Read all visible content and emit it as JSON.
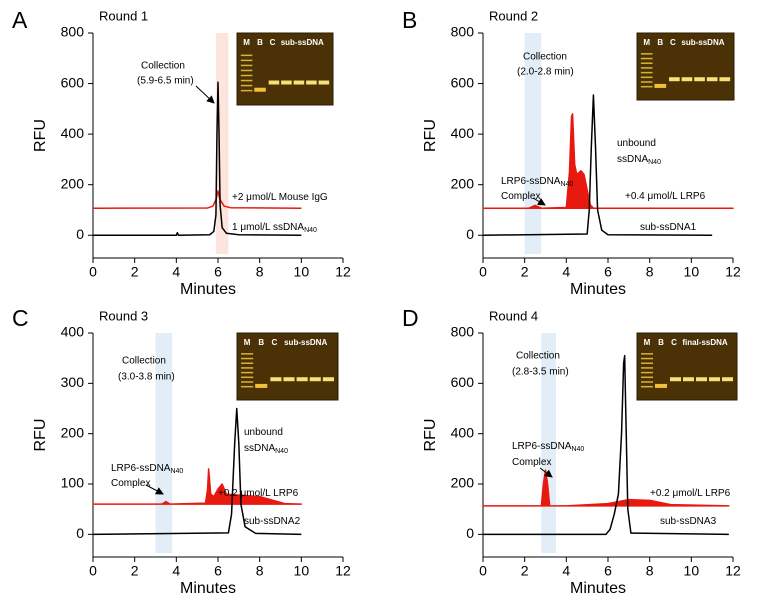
{
  "chart_data": [
    {
      "type": "line",
      "panel": "A",
      "title": "Round 1",
      "xlabel": "Minutes",
      "ylabel": "RFU",
      "xlim": [
        0,
        12
      ],
      "xticks": [
        0,
        2,
        4,
        6,
        8,
        10,
        12
      ],
      "ylim": [
        -90,
        800
      ],
      "yticks": [
        0,
        200,
        400,
        600,
        800
      ],
      "collection": {
        "lines": [
          "Collection",
          "(5.9-6.5 min)"
        ],
        "range": [
          5.9,
          6.5
        ],
        "color": "#fde4dc"
      },
      "gel_labels": [
        "M",
        "B",
        "C",
        "sub-ssDNA"
      ],
      "notes": [],
      "series": [
        {
          "name": "+2 μmol/L Mouse IgG",
          "color": "#e8190e",
          "fill": false,
          "x": [
            0,
            5.5,
            5.75,
            5.9,
            6.0,
            6.1,
            6.3,
            6.6,
            10
          ],
          "values": [
            107,
            108,
            115,
            140,
            175,
            140,
            115,
            109,
            107
          ]
        },
        {
          "name": "1 μmol/L ssDNA",
          "name_sub": "N40",
          "color": "#000000",
          "fill": false,
          "x": [
            0,
            4,
            4.05,
            4.1,
            5.6,
            5.8,
            5.9,
            5.95,
            6.0,
            6.05,
            6.1,
            6.2,
            6.4,
            7,
            10
          ],
          "values": [
            0,
            0,
            10,
            0,
            2,
            15,
            80,
            400,
            605,
            400,
            120,
            30,
            8,
            2,
            0
          ]
        }
      ]
    },
    {
      "type": "line",
      "panel": "B",
      "title": "Round 2",
      "xlabel": "Minutes",
      "ylabel": "RFU",
      "xlim": [
        0,
        12
      ],
      "xticks": [
        0,
        2,
        4,
        6,
        8,
        10,
        12
      ],
      "ylim": [
        -90,
        800
      ],
      "yticks": [
        0,
        200,
        400,
        600,
        800
      ],
      "collection": {
        "lines": [
          "Collection",
          "(2.0-2.8 min)"
        ],
        "range": [
          2.0,
          2.8
        ],
        "color": "#e3edf7"
      },
      "gel_labels": [
        "M",
        "B",
        "C",
        "sub-ssDNA"
      ],
      "notes": [
        [
          "unbound"
        ],
        [
          "ssDNA",
          "N40"
        ],
        [
          "LRP6-ssDNA",
          "N40"
        ],
        [
          "Complex"
        ]
      ],
      "series": [
        {
          "name": "+0.4 μmol/L LRP6",
          "color": "#e8190e",
          "fill": true,
          "x": [
            0,
            2.2,
            2.5,
            2.8,
            4.0,
            4.15,
            4.25,
            4.3,
            4.4,
            4.5,
            4.7,
            4.85,
            5.0,
            5.15,
            5.3,
            12
          ],
          "values": [
            107,
            107,
            118,
            107,
            110,
            250,
            470,
            480,
            280,
            240,
            255,
            240,
            180,
            120,
            107,
            107
          ]
        },
        {
          "name": "sub-ssDNA1",
          "color": "#000000",
          "fill": false,
          "x": [
            0,
            5.0,
            5.1,
            5.2,
            5.3,
            5.4,
            5.5,
            5.7,
            6.0,
            11
          ],
          "values": [
            0,
            5,
            100,
            350,
            555,
            350,
            100,
            20,
            2,
            0
          ]
        }
      ]
    },
    {
      "type": "line",
      "panel": "C",
      "title": "Round 3",
      "xlabel": "Minutes",
      "ylabel": "RFU",
      "xlim": [
        0,
        12
      ],
      "xticks": [
        0,
        2,
        4,
        6,
        8,
        10,
        12
      ],
      "ylim": [
        -45,
        400
      ],
      "yticks": [
        0,
        100,
        200,
        300,
        400
      ],
      "collection": {
        "lines": [
          "Collection",
          "(3.0-3.8 min)"
        ],
        "range": [
          3.0,
          3.8
        ],
        "color": "#e3edf7"
      },
      "gel_labels": [
        "M",
        "B",
        "C",
        "sub-ssDNA"
      ],
      "notes": [
        [
          "unbound"
        ],
        [
          "ssDNA",
          "N40"
        ],
        [
          "LRP6-ssDNA",
          "N40"
        ],
        [
          "Complex"
        ]
      ],
      "series": [
        {
          "name": "+0.2 μmol/L LRP6",
          "color": "#e8190e",
          "fill": true,
          "x": [
            0,
            3.3,
            3.5,
            3.7,
            5.4,
            5.5,
            5.55,
            5.65,
            5.8,
            6.0,
            6.2,
            6.4,
            7,
            8,
            8.6,
            9.2,
            10
          ],
          "values": [
            60,
            60,
            65,
            60,
            62,
            90,
            130,
            80,
            75,
            90,
            100,
            80,
            78,
            75,
            68,
            61,
            60
          ]
        },
        {
          "name": "sub-ssDNA2",
          "color": "#000000",
          "fill": false,
          "x": [
            0,
            6.5,
            6.65,
            6.8,
            6.9,
            7.0,
            7.1,
            7.3,
            7.8,
            10
          ],
          "values": [
            0,
            3,
            40,
            180,
            250,
            180,
            60,
            15,
            2,
            0
          ]
        }
      ]
    },
    {
      "type": "line",
      "panel": "D",
      "title": "Round 4",
      "xlabel": "Minutes",
      "ylabel": "RFU",
      "xlim": [
        0,
        12
      ],
      "xticks": [
        0,
        2,
        4,
        6,
        8,
        10,
        12
      ],
      "ylim": [
        -90,
        800
      ],
      "yticks": [
        0,
        200,
        400,
        600,
        800
      ],
      "collection": {
        "lines": [
          "Collection",
          "(2.8-3.5 min)"
        ],
        "range": [
          2.8,
          3.5
        ],
        "color": "#e3edf7"
      },
      "gel_labels": [
        "M",
        "B",
        "C",
        "final-ssDNA"
      ],
      "notes": [
        [
          "LRP6-ssDNA",
          "N40"
        ],
        [
          "Complex"
        ]
      ],
      "series": [
        {
          "name": "+0.2 μmol/L LRP6",
          "color": "#e8190e",
          "fill": true,
          "x": [
            0,
            2.8,
            2.9,
            3.0,
            3.1,
            3.2,
            4,
            6,
            7,
            8,
            9,
            11.8
          ],
          "values": [
            113,
            113,
            200,
            255,
            200,
            113,
            113,
            122,
            138,
            135,
            118,
            113
          ]
        },
        {
          "name": "sub-ssDNA3",
          "color": "#000000",
          "fill": false,
          "x": [
            0,
            5.9,
            6.1,
            6.3,
            6.5,
            6.65,
            6.75,
            6.8,
            6.85,
            6.95,
            7.1,
            11.8
          ],
          "values": [
            0,
            0,
            20,
            80,
            160,
            400,
            680,
            710,
            500,
            100,
            5,
            0
          ]
        }
      ]
    }
  ]
}
